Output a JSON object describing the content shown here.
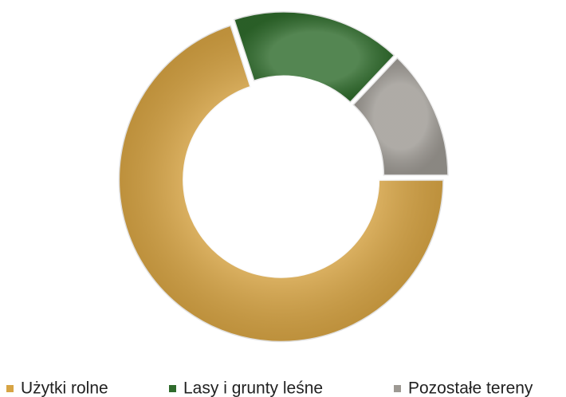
{
  "chart_data": {
    "type": "pie",
    "categories": [
      "Użytki rolne",
      "Lasy i grunty leśne",
      "Pozostałe tereny"
    ],
    "values": [
      70,
      17,
      13
    ],
    "colors": [
      "#d7a444",
      "#2f6b2c",
      "#9d9993"
    ],
    "donut": true
  }
}
